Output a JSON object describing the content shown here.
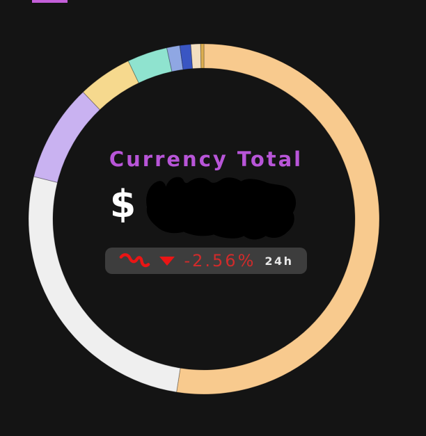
{
  "page": {
    "background": "#141414"
  },
  "top_bar": {
    "color": "#c45fd9"
  },
  "donut": {
    "center_label": {
      "title": "Currency Total",
      "title_color": "#b855d8",
      "currency_symbol": "$",
      "amount_hidden": true,
      "change": {
        "value": "-2.56%",
        "period": "24h",
        "direction": "down",
        "text_color": "#d02b2b",
        "icon_color": "#ea1515",
        "pill_background": "#3d3d3d"
      }
    }
  },
  "chart_data": {
    "type": "pie",
    "donut": true,
    "title": "Currency Total",
    "start_angle_deg": 0,
    "direction": "clockwise",
    "unit": "percent_of_ring_estimated",
    "segments": [
      {
        "label": "orange",
        "value": 52.5,
        "color": "#f8ca8e"
      },
      {
        "label": "white",
        "value": 26.4,
        "color": "#efefef"
      },
      {
        "label": "lavender",
        "value": 9.0,
        "color": "#c9b2f1"
      },
      {
        "label": "yellow",
        "value": 5.0,
        "color": "#f6d98e"
      },
      {
        "label": "teal",
        "value": 3.7,
        "color": "#8fe3cf"
      },
      {
        "label": "periwinkle",
        "value": 1.2,
        "color": "#8fa7e3"
      },
      {
        "label": "blue",
        "value": 1.0,
        "color": "#3a56c3"
      },
      {
        "label": "cream",
        "value": 0.9,
        "color": "#f3dfc0"
      },
      {
        "label": "gold",
        "value": 0.3,
        "color": "#dcae50"
      }
    ]
  }
}
